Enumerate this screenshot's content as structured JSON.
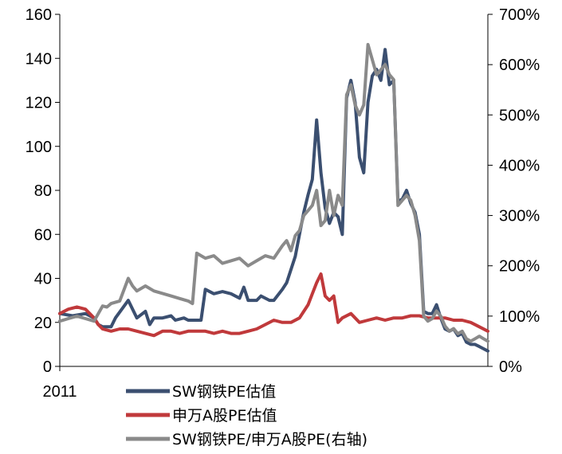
{
  "chart_data": {
    "type": "line",
    "title": "",
    "xlabel": "",
    "ylabel": "",
    "x_tick_labels": [
      "2011"
    ],
    "left_axis": {
      "min": 0,
      "max": 160,
      "ticks": [
        "0",
        "20",
        "40",
        "60",
        "80",
        "100",
        "120",
        "140",
        "160"
      ]
    },
    "right_axis": {
      "min": 0,
      "max": 700,
      "ticks": [
        "0%",
        "100%",
        "200%",
        "300%",
        "400%",
        "500%",
        "600%",
        "700%"
      ]
    },
    "legend_position": "bottom",
    "grid": false,
    "x_range": [
      0,
      100
    ],
    "series": [
      {
        "name": "SW钢铁PE估值",
        "axis": "left",
        "color": "#3B4F70",
        "x": [
          0,
          3,
          6,
          8,
          9,
          10,
          12,
          13,
          16,
          18,
          20,
          21,
          22,
          24,
          26,
          27,
          29,
          30,
          33,
          34,
          36,
          38,
          40,
          42,
          43,
          44,
          46,
          47,
          49,
          50,
          52,
          53,
          55,
          56,
          57,
          58,
          59,
          60,
          61,
          62,
          63,
          64,
          65,
          66,
          67,
          68,
          69,
          70,
          71,
          72,
          73,
          74,
          75,
          76,
          77,
          78,
          79,
          80,
          81,
          82,
          83,
          84,
          85,
          86,
          87,
          88,
          89,
          90,
          91,
          92,
          93,
          94,
          95,
          96,
          97,
          98,
          99,
          100
        ],
        "values": [
          24,
          23,
          24,
          22,
          19,
          18,
          18,
          22,
          30,
          22,
          25,
          19,
          22,
          22,
          23,
          21,
          22,
          21,
          21,
          35,
          33,
          34,
          33,
          31,
          36,
          30,
          30,
          32,
          30,
          30,
          35,
          38,
          50,
          60,
          70,
          78,
          85,
          112,
          88,
          72,
          65,
          70,
          68,
          60,
          122,
          130,
          120,
          95,
          88,
          120,
          132,
          135,
          130,
          144,
          128,
          130,
          75,
          76,
          80,
          74,
          70,
          60,
          25,
          24,
          24,
          28,
          22,
          17,
          16,
          17,
          14,
          15,
          11,
          10,
          10,
          9,
          8,
          7
        ]
      },
      {
        "name": "申万A股PE估值",
        "axis": "left",
        "color": "#C0393B",
        "x": [
          0,
          2,
          4,
          6,
          8,
          9,
          10,
          12,
          14,
          16,
          18,
          20,
          22,
          24,
          26,
          28,
          30,
          32,
          34,
          36,
          38,
          40,
          42,
          44,
          46,
          48,
          50,
          52,
          54,
          56,
          57,
          58,
          59,
          60,
          61,
          62,
          63,
          64,
          65,
          66,
          68,
          70,
          72,
          74,
          76,
          78,
          80,
          82,
          84,
          86,
          88,
          90,
          92,
          94,
          96,
          98,
          100
        ],
        "values": [
          24,
          26,
          27,
          26,
          22,
          19,
          17,
          16,
          17,
          17,
          16,
          15,
          14,
          16,
          16,
          15,
          16,
          16,
          16,
          15,
          16,
          15,
          15,
          16,
          17,
          19,
          21,
          20,
          20,
          22,
          25,
          28,
          33,
          38,
          42,
          32,
          30,
          32,
          20,
          22,
          24,
          20,
          21,
          22,
          21,
          22,
          22,
          23,
          23,
          22,
          22,
          22,
          21,
          21,
          20,
          18,
          16
        ]
      },
      {
        "name": "SW钢铁PE/申万A股PE(右轴)",
        "axis": "right",
        "color": "#8A8A8A",
        "x": [
          0,
          2,
          4,
          6,
          8,
          10,
          11,
          12,
          14,
          16,
          17,
          18,
          20,
          22,
          24,
          26,
          28,
          30,
          31,
          32,
          34,
          36,
          38,
          40,
          42,
          44,
          46,
          48,
          50,
          52,
          53,
          54,
          55,
          56,
          57,
          58,
          59,
          60,
          61,
          62,
          63,
          64,
          65,
          66,
          67,
          68,
          69,
          70,
          71,
          72,
          73,
          74,
          75,
          76,
          77,
          78,
          79,
          80,
          81,
          82,
          83,
          84,
          85,
          86,
          87,
          88,
          89,
          90,
          91,
          92,
          93,
          94,
          95,
          96,
          97,
          98,
          99,
          100
        ],
        "values": [
          90,
          95,
          100,
          95,
          90,
          120,
          118,
          125,
          130,
          175,
          160,
          150,
          160,
          150,
          145,
          140,
          135,
          130,
          125,
          225,
          215,
          220,
          205,
          210,
          215,
          200,
          210,
          220,
          215,
          240,
          250,
          230,
          260,
          270,
          300,
          310,
          320,
          350,
          280,
          290,
          350,
          300,
          340,
          320,
          540,
          560,
          520,
          500,
          520,
          640,
          610,
          580,
          590,
          600,
          580,
          570,
          320,
          330,
          340,
          330,
          300,
          250,
          100,
          90,
          95,
          110,
          100,
          80,
          70,
          75,
          65,
          70,
          55,
          50,
          55,
          60,
          55,
          50
        ]
      }
    ]
  }
}
